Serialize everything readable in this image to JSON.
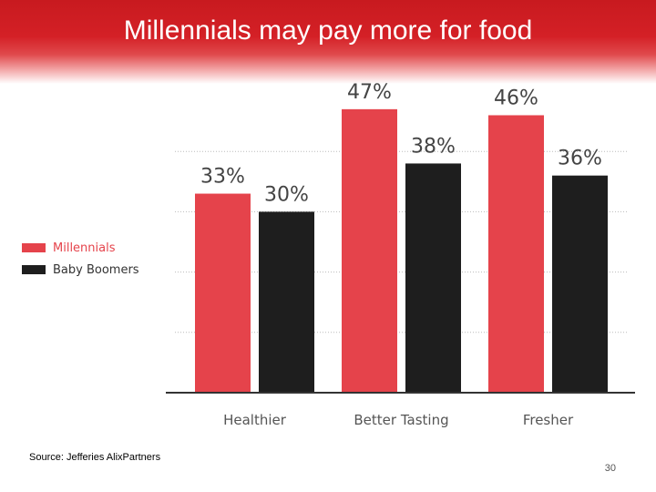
{
  "slide": {
    "title": "Millennials may pay more for food",
    "source": "Source: Jefferies AlixPartners",
    "page_number": "30"
  },
  "chart_data": {
    "type": "bar",
    "categories": [
      "Healthier",
      "Better Tasting",
      "Fresher"
    ],
    "series": [
      {
        "name": "Millennials",
        "values": [
          33,
          47,
          46
        ],
        "labels": [
          "33%",
          "47%",
          "46%"
        ],
        "color": "#e5434b"
      },
      {
        "name": "Baby Boomers",
        "values": [
          30,
          38,
          36
        ],
        "labels": [
          "30%",
          "38%",
          "36%"
        ],
        "color": "#1e1e1e"
      }
    ],
    "ylim": [
      0,
      50
    ],
    "grid": true,
    "legend_position": "left",
    "title": "",
    "xlabel": "",
    "ylabel": ""
  },
  "colors": {
    "banner": "#d42026",
    "label_text": "#444444",
    "grid": "#bbbbbb",
    "axis": "#333333"
  }
}
